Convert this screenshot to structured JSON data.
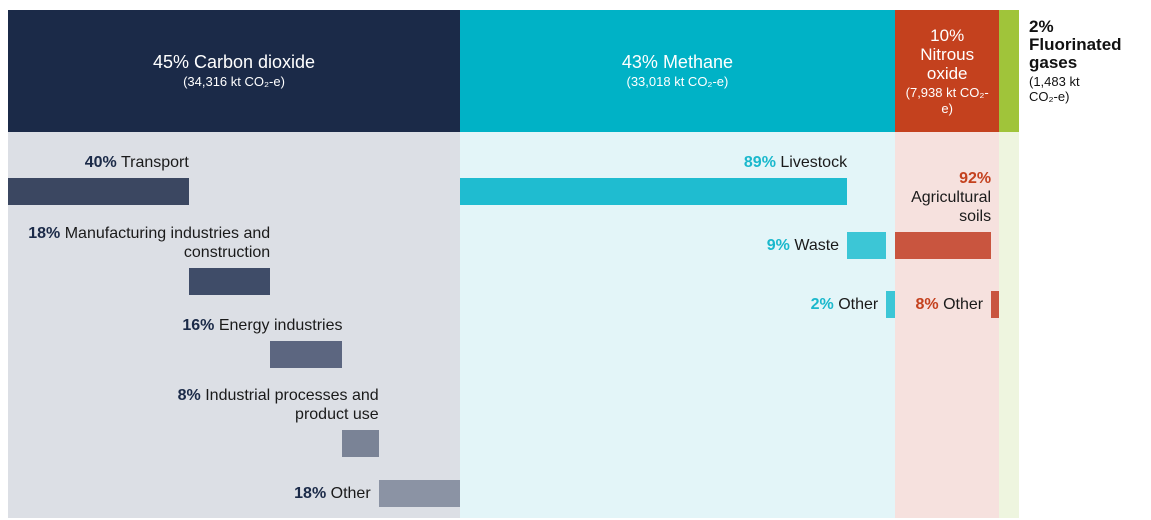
{
  "chart_data": {
    "type": "mekko",
    "gases": [
      {
        "name": "Carbon dioxide",
        "percent": 45,
        "percent_label": "45%",
        "amount": 34316,
        "amount_label": "(34,316 kt CO₂-e)",
        "color": "#1b2a48",
        "background": "#dcdfe5",
        "sources": [
          {
            "name": "Transport",
            "percent": 40,
            "percent_label": "40%",
            "color": "#3b4761"
          },
          {
            "name": "Manufacturing industries and construction",
            "percent": 18,
            "percent_label": "18%",
            "color": "#3f4c68"
          },
          {
            "name": "Energy industries",
            "percent": 16,
            "percent_label": "16%",
            "color": "#5c6680"
          },
          {
            "name": "Industrial processes and product use",
            "percent": 8,
            "percent_label": "8%",
            "color": "#7a8396"
          },
          {
            "name": "Other",
            "percent": 18,
            "percent_label": "18%",
            "color": "#8b93a4"
          }
        ]
      },
      {
        "name": "Methane",
        "percent": 43,
        "percent_label": "43%",
        "amount": 33018,
        "amount_label": "(33,018 kt CO₂-e)",
        "color": "#00b2c6",
        "background": "#e3f5f8",
        "sources": [
          {
            "name": "Livestock",
            "percent": 89,
            "percent_label": "89%",
            "color": "#1fbcd0"
          },
          {
            "name": "Waste",
            "percent": 9,
            "percent_label": "9%",
            "color": "#3cc6d6"
          },
          {
            "name": "Other",
            "percent": 2,
            "percent_label": "2%",
            "color": "#3cc6d6"
          }
        ]
      },
      {
        "name": "Nitrous oxide",
        "percent": 10,
        "percent_label": "10%",
        "amount": 7938,
        "amount_label": "(7,938 kt CO₂-e)",
        "color": "#c4411e",
        "background": "#f6e1de",
        "sources": [
          {
            "name": "Agricultural soils",
            "percent": 92,
            "percent_label": "92%",
            "color": "#c9553f"
          },
          {
            "name": "Other",
            "percent": 8,
            "percent_label": "8%",
            "color": "#c9553f"
          }
        ]
      },
      {
        "name": "Fluorinated gases",
        "percent": 2,
        "percent_label": "2%",
        "amount": 1483,
        "amount_label": "(1,483 kt CO₂-e)",
        "color": "#a0c43a",
        "background": "#eef5df",
        "sources": []
      }
    ]
  }
}
